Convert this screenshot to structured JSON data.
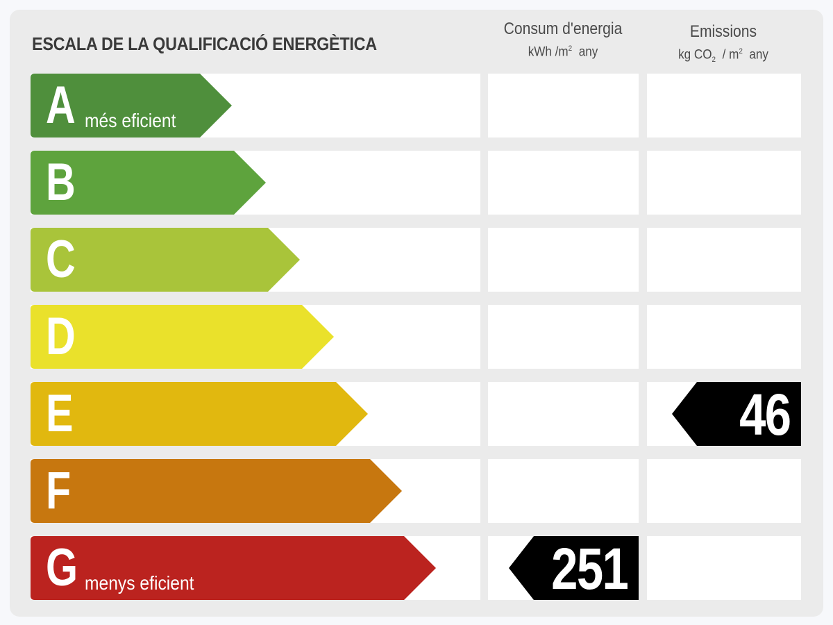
{
  "title": "ESCALA DE LA QUALIFICACIÓ ENERGÈTICA",
  "columns": {
    "consum": {
      "title": "Consum d'energia",
      "unit_pre": "kWh /m",
      "unit_sup": "2",
      "unit_post": "any"
    },
    "emissions": {
      "title": "Emissions",
      "unit_pre": "kg CO",
      "unit_sub": "2",
      "unit_mid": "/ m",
      "unit_sup": "2",
      "unit_post": "any"
    }
  },
  "chart_data": {
    "type": "table",
    "title": "ESCALA DE LA QUALIFICACIÓ ENERGÈTICA",
    "ratings": [
      {
        "letter": "A",
        "desc": "més eficient",
        "color": "#4f8f3c"
      },
      {
        "letter": "B",
        "desc": "",
        "color": "#5ea33d"
      },
      {
        "letter": "C",
        "desc": "",
        "color": "#a9c43a"
      },
      {
        "letter": "D",
        "desc": "",
        "color": "#eae12b"
      },
      {
        "letter": "E",
        "desc": "",
        "color": "#e1b80f"
      },
      {
        "letter": "F",
        "desc": "",
        "color": "#c7770f"
      },
      {
        "letter": "G",
        "desc": "menys eficient",
        "color": "#bb231f"
      }
    ],
    "consum_energia": {
      "rating": "G",
      "value": "251"
    },
    "emissions": {
      "rating": "E",
      "value": "46"
    }
  }
}
